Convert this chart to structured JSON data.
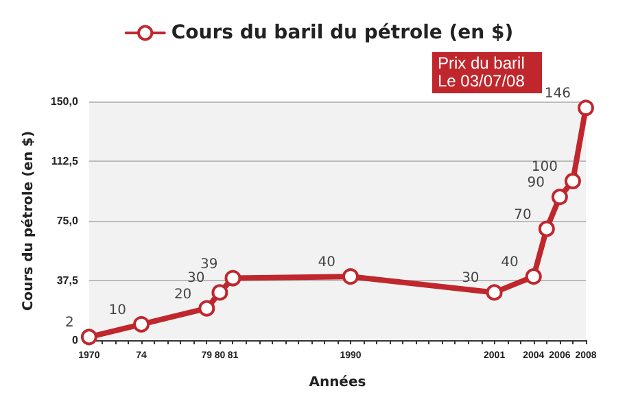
{
  "chart_data": {
    "type": "line",
    "xlabel": "Années",
    "ylabel": "Cours du pétrole (en $)",
    "x": [
      1970,
      1974,
      1979,
      1980,
      1981,
      1990,
      2001,
      2004,
      2005,
      2006,
      2007,
      2008
    ],
    "series": [
      {
        "name": "Cours du baril du pétrole (en $)",
        "color": "#c0272d",
        "values": [
          2,
          10,
          20,
          30,
          39,
          40,
          30,
          40,
          70,
          90,
          100,
          146
        ]
      }
    ],
    "xlim": [
      1970,
      2008
    ],
    "xticks": [
      {
        "value": 1970,
        "label": "1970"
      },
      {
        "value": 1971,
        "label": null
      },
      {
        "value": 1972,
        "label": null
      },
      {
        "value": 1973,
        "label": null
      },
      {
        "value": 1974,
        "label": "74"
      },
      {
        "value": 1975,
        "label": null
      },
      {
        "value": 1976,
        "label": null
      },
      {
        "value": 1977,
        "label": null
      },
      {
        "value": 1978,
        "label": null
      },
      {
        "value": 1979,
        "label": "79"
      },
      {
        "value": 1980,
        "label": "80"
      },
      {
        "value": 1981,
        "label": "81"
      },
      {
        "value": 1982,
        "label": null
      },
      {
        "value": 1983,
        "label": null
      },
      {
        "value": 1984,
        "label": null
      },
      {
        "value": 1985,
        "label": null
      },
      {
        "value": 1986,
        "label": null
      },
      {
        "value": 1987,
        "label": null
      },
      {
        "value": 1988,
        "label": null
      },
      {
        "value": 1989,
        "label": null
      },
      {
        "value": 1990,
        "label": "1990"
      },
      {
        "value": 1991,
        "label": null
      },
      {
        "value": 1992,
        "label": null
      },
      {
        "value": 1993,
        "label": null
      },
      {
        "value": 1994,
        "label": null
      },
      {
        "value": 1995,
        "label": null
      },
      {
        "value": 1996,
        "label": null
      },
      {
        "value": 1997,
        "label": null
      },
      {
        "value": 1998,
        "label": null
      },
      {
        "value": 1999,
        "label": null
      },
      {
        "value": 2000,
        "label": null
      },
      {
        "value": 2001,
        "label": "2001"
      },
      {
        "value": 2002,
        "label": null
      },
      {
        "value": 2003,
        "label": null
      },
      {
        "value": 2004,
        "label": "2004"
      },
      {
        "value": 2005,
        "label": null
      },
      {
        "value": 2006,
        "label": "2006"
      },
      {
        "value": 2007,
        "label": null
      },
      {
        "value": 2008,
        "label": "2008"
      }
    ],
    "ylim": [
      0,
      150
    ],
    "yticks": [
      0,
      {
        "value": 37.5,
        "label": "37,5"
      },
      {
        "value": 75,
        "label": "75,0"
      },
      {
        "value": 112.5,
        "label": "112,5"
      },
      {
        "value": 150,
        "label": "150,0"
      }
    ],
    "annotations": [
      "Prix du baril",
      "Le 03/07/08"
    ],
    "data_labels": true,
    "grid": "y",
    "legend": "top",
    "marker": "circle",
    "line_style": "solid"
  }
}
